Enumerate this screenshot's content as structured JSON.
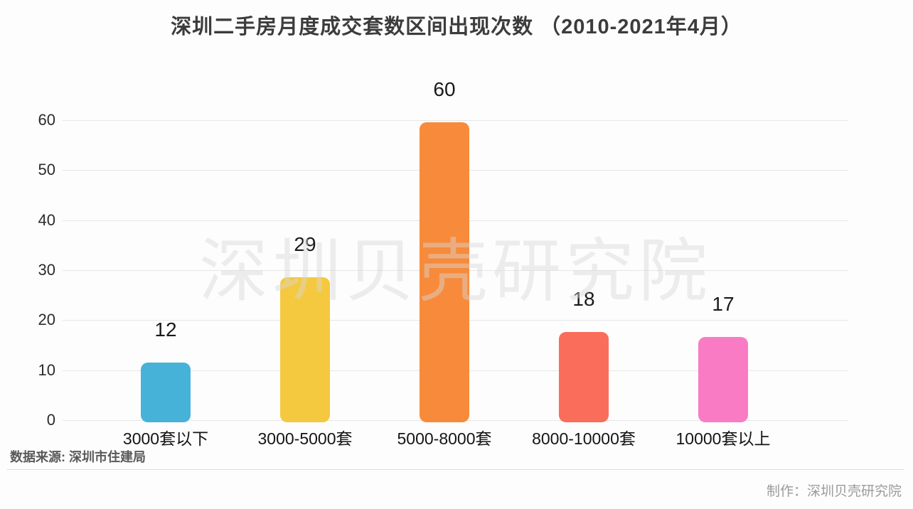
{
  "title": "深圳二手房月度成交套数区间出现次数 （2010-2021年4月）",
  "chart_data": {
    "type": "bar",
    "title": "深圳二手房月度成交套数区间出现次数 （2010-2021年4月）",
    "categories": [
      "3000套以下",
      "3000-5000套",
      "5000-8000套",
      "8000-10000套",
      "10000套以上"
    ],
    "values": [
      12,
      29,
      60,
      18,
      17
    ],
    "value_labels": [
      "12",
      "29",
      "60",
      "18",
      "17"
    ],
    "bar_colors": [
      "#47B2D8",
      "#F5C93F",
      "#F78B3B",
      "#FA6D5B",
      "#F97BC4"
    ],
    "xlabel": "",
    "ylabel": "",
    "yticks": [
      0,
      10,
      20,
      30,
      40,
      50,
      60
    ],
    "ylim": [
      0,
      60
    ],
    "grid": true,
    "legend": false,
    "watermark": "深圳贝壳研究院"
  },
  "footer": {
    "source": "数据来源: 深圳市住建局",
    "credit": "制作：深圳贝壳研究院"
  }
}
